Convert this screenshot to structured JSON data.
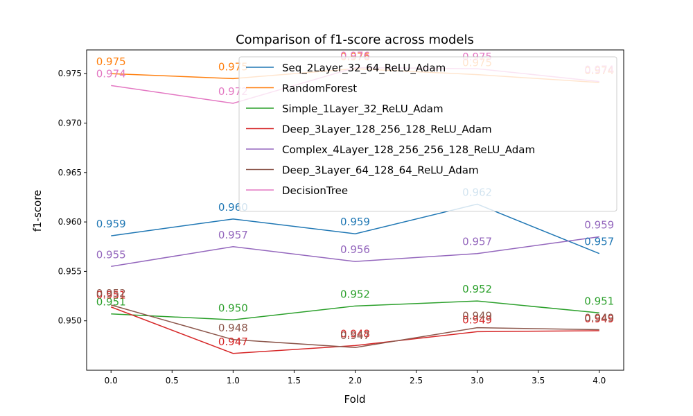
{
  "chart_data": {
    "type": "line",
    "title": "Comparison of f1-score across models",
    "xlabel": "Fold",
    "ylabel": "f1-score",
    "x": [
      0,
      1,
      2,
      3,
      4
    ],
    "xlim": [
      -0.2,
      4.2
    ],
    "ylim": [
      0.945,
      0.9774
    ],
    "xticks": [
      "0.0",
      "0.5",
      "1.0",
      "1.5",
      "2.0",
      "2.5",
      "3.0",
      "3.5",
      "4.0"
    ],
    "xtick_values": [
      0,
      0.5,
      1,
      1.5,
      2,
      2.5,
      3,
      3.5,
      4
    ],
    "yticks": [
      "0.950",
      "0.955",
      "0.960",
      "0.965",
      "0.970",
      "0.975"
    ],
    "ytick_values": [
      0.95,
      0.955,
      0.96,
      0.965,
      0.97,
      0.975
    ],
    "grid": false,
    "legend_position": "upper-right",
    "series": [
      {
        "name": "Seq_2Layer_32_64_ReLU_Adam",
        "color": "#1f77b4",
        "values": [
          0.9586,
          0.9603,
          0.9588,
          0.9618,
          0.9568
        ],
        "labels": [
          "0.959",
          "0.960",
          "0.959",
          "0.962",
          "0.957"
        ]
      },
      {
        "name": "RandomForest",
        "color": "#ff7f0e",
        "values": [
          0.975,
          0.9745,
          0.9755,
          0.9749,
          0.9741
        ],
        "labels": [
          "0.975",
          "0.975",
          "0.976",
          "0.975",
          "0.974"
        ]
      },
      {
        "name": "Simple_1Layer_32_ReLU_Adam",
        "color": "#2ca02c",
        "values": [
          0.9507,
          0.9501,
          0.9515,
          0.952,
          0.9508
        ],
        "labels": [
          "0.951",
          "0.950",
          "0.952",
          "0.952",
          "0.951"
        ]
      },
      {
        "name": "Deep_3Layer_128_256_128_ReLU_Adam",
        "color": "#d62728",
        "values": [
          0.9514,
          0.9467,
          0.9475,
          0.9489,
          0.949
        ],
        "labels": [
          "0.951",
          "0.947",
          "0.948",
          "0.949",
          "0.949"
        ]
      },
      {
        "name": "Complex_4Layer_128_256_256_128_ReLU_Adam",
        "color": "#9467bd",
        "values": [
          0.9555,
          0.9575,
          0.956,
          0.9568,
          0.9585
        ],
        "labels": [
          "0.955",
          "0.957",
          "0.956",
          "0.957",
          "0.959"
        ]
      },
      {
        "name": "Deep_3Layer_64_128_64_ReLU_Adam",
        "color": "#8c564b",
        "values": [
          0.9516,
          0.9481,
          0.9473,
          0.9493,
          0.9491
        ],
        "labels": [
          "0.952",
          "0.948",
          "0.947",
          "0.949",
          "0.949"
        ]
      },
      {
        "name": "DecisionTree",
        "color": "#e377c2",
        "values": [
          0.9738,
          0.972,
          0.9756,
          0.9755,
          0.9742
        ],
        "labels": [
          "0.974",
          "0.972",
          "0.976",
          "0.975",
          "0.974"
        ]
      }
    ]
  }
}
